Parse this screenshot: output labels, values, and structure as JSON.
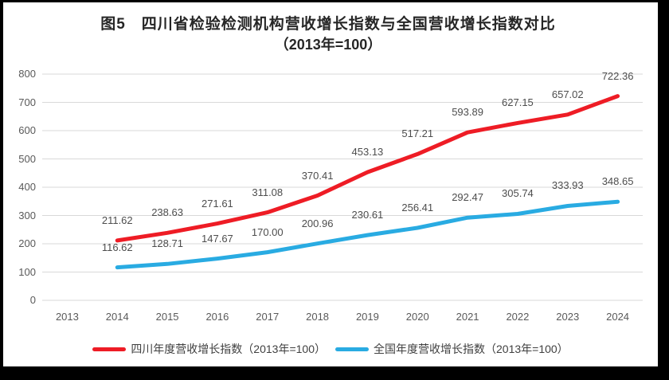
{
  "chart_data": {
    "type": "line",
    "title": "图5　四川省检验检测机构营收增长指数与全国营收增长指数对比",
    "subtitle": "（2013年=100）",
    "categories": [
      "2013",
      "2014",
      "2015",
      "2016",
      "2017",
      "2018",
      "2019",
      "2020",
      "2021",
      "2022",
      "2023",
      "2024"
    ],
    "series": [
      {
        "key": "sichuan",
        "name": "四川年度营收增长指数（2013年=100）",
        "color": "#EE1C25",
        "start_category_index": 1,
        "values": [
          211.62,
          238.63,
          271.61,
          311.08,
          370.41,
          453.13,
          517.21,
          593.89,
          627.15,
          657.02,
          722.36
        ]
      },
      {
        "key": "national",
        "name": "全国年度营收增长指数（2013年=100）",
        "color": "#29ABE2",
        "start_category_index": 1,
        "values": [
          116.62,
          128.71,
          147.67,
          170.0,
          200.96,
          230.61,
          256.41,
          292.47,
          305.74,
          333.93,
          348.65
        ]
      }
    ],
    "ylim": [
      0,
      800
    ],
    "yticks": [
      0,
      100,
      200,
      300,
      400,
      500,
      600,
      700,
      800
    ],
    "grid": true,
    "legend_position": "bottom",
    "data_labels": true,
    "label_decimals": 2
  },
  "colors": {
    "grid": "#D9D9D9",
    "axis_text": "#595959",
    "data_label_text": "#4D4D4D",
    "title_text": "#262626",
    "legend_text": "#404040",
    "frame": "#000000",
    "background": "#FFFFFF"
  }
}
